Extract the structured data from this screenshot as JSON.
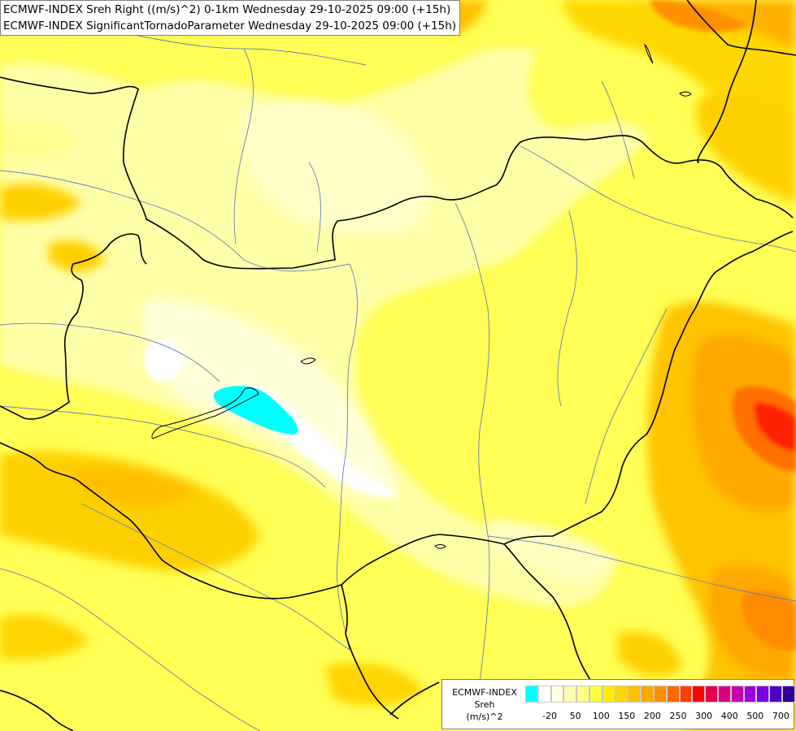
{
  "title": {
    "line1": "ECMWF-INDEX Sreh Right ((m/s)^2) 0-1km Wednesday 29-10-2025 09:00 (+15h)",
    "line2": "ECMWF-INDEX SignificantTornadoParameter Wednesday 29-10-2025 09:00 (+15h)"
  },
  "legend": {
    "line1": "ECMWF-INDEX",
    "line2": "Sreh",
    "line3": "(m/s)^2",
    "colors": [
      "#00ffff",
      "#ffffff",
      "#ffffe0",
      "#ffffb0",
      "#ffff80",
      "#ffff40",
      "#ffee00",
      "#ffd700",
      "#ffc000",
      "#ffa800",
      "#ff9000",
      "#ff6a00",
      "#ff3c00",
      "#ff0000",
      "#e8004e",
      "#d8007e",
      "#c800b0",
      "#a000e0",
      "#7800e0",
      "#5000c0",
      "#300098",
      "#000080"
    ],
    "ticks": [
      {
        "label": "-20",
        "i": 1
      },
      {
        "label": "50",
        "i": 3
      },
      {
        "label": "100",
        "i": 5
      },
      {
        "label": "150",
        "i": 7
      },
      {
        "label": "200",
        "i": 9
      },
      {
        "label": "250",
        "i": 11
      },
      {
        "label": "300",
        "i": 13
      },
      {
        "label": "400",
        "i": 15
      },
      {
        "label": "500",
        "i": 17
      },
      {
        "label": "700",
        "i": 19
      }
    ]
  },
  "colors": {
    "base_field": "#ffff66",
    "low_field": "#ffffb3",
    "cyan_region": "#00ffff",
    "high_field": "#ffc000",
    "max_field": "#ff0000",
    "border": "#000000",
    "river": "#6a7fb8"
  }
}
